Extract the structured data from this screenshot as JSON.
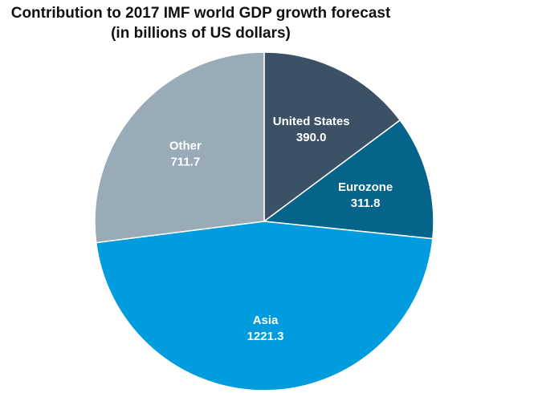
{
  "chart_data": {
    "type": "pie",
    "title": "Contribution to 2017 IMF world GDP growth forecast (in billions of US dollars)",
    "slices": [
      {
        "label": "United States",
        "value": 390.0,
        "display": "390.0",
        "color": "#3d5166"
      },
      {
        "label": "Eurozone",
        "value": 311.8,
        "display": "311.8",
        "color": "#05648a"
      },
      {
        "label": "Asia",
        "value": 1221.3,
        "display": "1221.3",
        "color": "#009cde"
      },
      {
        "label": "Other",
        "value": 711.7,
        "display": "711.7",
        "color": "#9aabb8"
      }
    ],
    "start": "12 o'clock",
    "direction": "clockwise",
    "legend": "none"
  }
}
